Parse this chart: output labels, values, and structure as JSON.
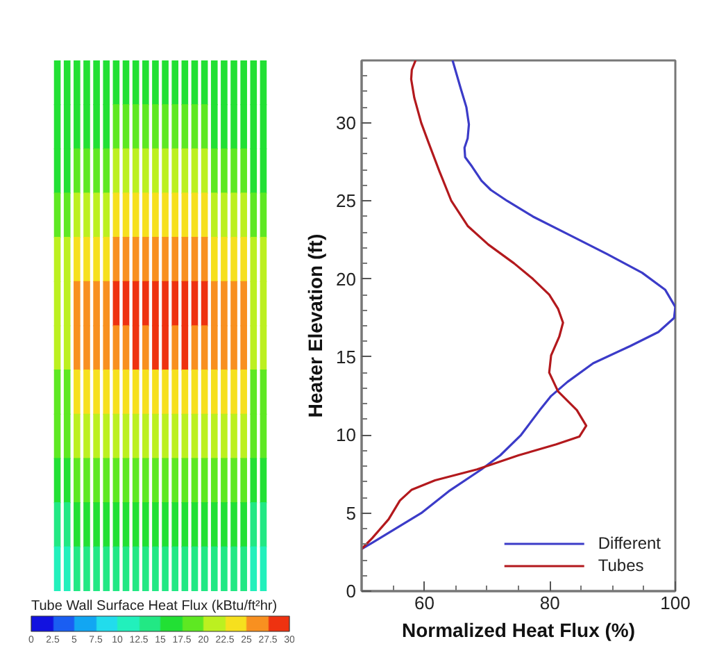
{
  "chart_data": [
    {
      "type": "heatmap",
      "clabel": "Tube Wall Surface Heat Flux (kBtu/ft²hr)",
      "clim": [
        0,
        30
      ],
      "cticks": [
        0,
        2.5,
        5,
        7.5,
        10,
        12.5,
        15,
        17.5,
        20,
        22.5,
        25,
        27.5,
        30
      ],
      "colors": [
        "#1212e0",
        "#1a5ef2",
        "#12a6f2",
        "#22dcec",
        "#22f0bc",
        "#22e884",
        "#22e034",
        "#5ee822",
        "#bcf020",
        "#f6e01e",
        "#f89020",
        "#ee3210"
      ],
      "categories": [
        null,
        null,
        null,
        null,
        null,
        null,
        null,
        null,
        null,
        null,
        null,
        null,
        null,
        null,
        null,
        null,
        null,
        null,
        null,
        null,
        null,
        null
      ],
      "y_categories": [
        null,
        null,
        null,
        null,
        null,
        null,
        null,
        null,
        null,
        null,
        null,
        null
      ],
      "cells": [
        [
          16,
          16,
          16,
          16,
          16,
          16,
          16,
          16,
          16,
          16,
          16,
          16,
          16,
          16,
          16,
          16,
          16,
          16,
          16,
          16,
          16,
          16
        ],
        [
          16,
          16,
          16,
          16,
          16,
          16,
          19,
          19,
          19,
          19,
          19,
          19,
          19,
          19,
          19,
          19,
          16,
          16,
          16,
          16,
          16,
          16
        ],
        [
          16,
          16,
          19,
          19,
          19,
          19,
          21,
          21,
          21,
          21,
          21,
          21,
          21,
          21,
          21,
          21,
          19,
          19,
          19,
          19,
          16,
          16
        ],
        [
          19,
          19,
          21,
          21,
          21,
          21,
          24,
          24,
          24,
          24,
          24,
          24,
          24,
          24,
          24,
          24,
          21,
          21,
          21,
          21,
          19,
          19
        ],
        [
          21,
          21,
          24,
          24,
          24,
          24,
          26,
          26,
          26,
          26,
          26,
          26,
          26,
          26,
          26,
          26,
          24,
          24,
          24,
          24,
          21,
          21
        ],
        [
          21,
          21,
          26,
          26,
          26,
          26,
          29,
          29,
          29,
          29,
          29,
          29,
          29,
          29,
          29,
          29,
          26,
          26,
          26,
          26,
          21,
          21
        ],
        [
          21,
          21,
          26,
          26,
          26,
          26,
          26,
          26,
          29,
          26,
          29,
          29,
          26,
          29,
          26,
          26,
          26,
          26,
          26,
          26,
          21,
          21
        ],
        [
          19,
          19,
          24,
          24,
          24,
          24,
          24,
          24,
          24,
          24,
          24,
          24,
          24,
          24,
          24,
          24,
          24,
          24,
          24,
          24,
          19,
          19
        ],
        [
          19,
          19,
          21,
          21,
          21,
          21,
          21,
          21,
          21,
          21,
          21,
          21,
          21,
          21,
          21,
          21,
          21,
          21,
          21,
          21,
          19,
          19
        ],
        [
          16,
          16,
          19,
          19,
          19,
          19,
          19,
          19,
          19,
          19,
          19,
          19,
          19,
          19,
          19,
          19,
          19,
          19,
          19,
          19,
          16,
          16
        ],
        [
          14,
          14,
          16,
          16,
          16,
          16,
          16,
          16,
          16,
          16,
          16,
          16,
          16,
          16,
          16,
          16,
          16,
          16,
          16,
          16,
          14,
          14
        ],
        [
          11,
          11,
          14,
          14,
          14,
          14,
          14,
          14,
          14,
          14,
          14,
          14,
          14,
          14,
          14,
          14,
          14,
          14,
          14,
          14,
          11,
          11
        ]
      ]
    },
    {
      "type": "line",
      "xlabel": "Normalized Heat Flux (%)",
      "ylabel": "Heater Elevation (ft)",
      "xlim": [
        50,
        100
      ],
      "ylim": [
        0,
        34
      ],
      "xticks": [
        {
          "value": 55,
          "label": null
        },
        60,
        {
          "value": 65,
          "label": null
        },
        {
          "value": 70,
          "label": null
        },
        {
          "value": 75,
          "label": null
        },
        80,
        {
          "value": 85,
          "label": null
        },
        {
          "value": 90,
          "label": null
        },
        {
          "value": 95,
          "label": null
        },
        100
      ],
      "yticks": [
        0,
        {
          "value": 1,
          "label": null
        },
        {
          "value": 2,
          "label": null
        },
        {
          "value": 3,
          "label": null
        },
        {
          "value": 4,
          "label": null
        },
        5,
        {
          "value": 6,
          "label": null
        },
        {
          "value": 7,
          "label": null
        },
        {
          "value": 8,
          "label": null
        },
        {
          "value": 9,
          "label": null
        },
        10,
        {
          "value": 11,
          "label": null
        },
        {
          "value": 12,
          "label": null
        },
        {
          "value": 13,
          "label": null
        },
        {
          "value": 14,
          "label": null
        },
        15,
        {
          "value": 16,
          "label": null
        },
        {
          "value": 17,
          "label": null
        },
        {
          "value": 18,
          "label": null
        },
        {
          "value": 19,
          "label": null
        },
        20,
        {
          "value": 21,
          "label": null
        },
        {
          "value": 22,
          "label": null
        },
        {
          "value": 23,
          "label": null
        },
        {
          "value": 24,
          "label": null
        },
        25,
        {
          "value": 26,
          "label": null
        },
        {
          "value": 27,
          "label": null
        },
        {
          "value": 28,
          "label": null
        },
        {
          "value": 29,
          "label": null
        },
        30,
        {
          "value": 31,
          "label": null
        },
        {
          "value": 32,
          "label": null
        },
        {
          "value": 33,
          "label": null
        }
      ],
      "legend": "bottom right",
      "series": [
        {
          "name": "Different",
          "color": "#3b3bc8",
          "x": [
            50,
            51.7,
            55.4,
            59.5,
            63.9,
            69.1,
            72.1,
            75.4,
            78.4,
            80.2,
            82.8,
            86.9,
            92.8,
            97.3,
            99.8,
            100,
            98.4,
            94.7,
            89.1,
            83.2,
            77.3,
            73.2,
            70.6,
            69.1,
            67.6,
            66.5,
            66.4,
            66.9,
            67.1,
            66.7,
            65.8,
            64.5
          ],
          "values": [
            2.7,
            3.1,
            4.0,
            5.0,
            6.4,
            7.8,
            8.7,
            10.0,
            11.6,
            12.5,
            13.4,
            14.6,
            15.7,
            16.6,
            17.5,
            18.2,
            19.3,
            20.4,
            21.6,
            22.8,
            24.0,
            25.0,
            25.7,
            26.3,
            27.2,
            27.8,
            28.4,
            29.0,
            29.9,
            31.0,
            32.2,
            34
          ]
        },
        {
          "name": "Tubes",
          "color": "#b3191d",
          "x": [
            50,
            51.7,
            54.3,
            56.1,
            58.0,
            61.7,
            68.4,
            75.0,
            81.0,
            84.7,
            85.8,
            84.3,
            81.3,
            79.9,
            80.2,
            81.5,
            82.1,
            81.3,
            79.9,
            77.3,
            74.3,
            70.2,
            66.9,
            64.3,
            62.4,
            60.7,
            59.5,
            58.4,
            57.9,
            58.0,
            58.6
          ],
          "values": [
            2.7,
            3.4,
            4.6,
            5.8,
            6.5,
            7.1,
            7.8,
            8.7,
            9.4,
            9.9,
            10.6,
            11.6,
            12.8,
            14.0,
            15.1,
            16.3,
            17.2,
            18.1,
            19.0,
            20.0,
            21.0,
            22.2,
            23.4,
            25.0,
            26.9,
            28.7,
            30.0,
            31.6,
            32.8,
            33.4,
            34
          ]
        }
      ]
    }
  ]
}
